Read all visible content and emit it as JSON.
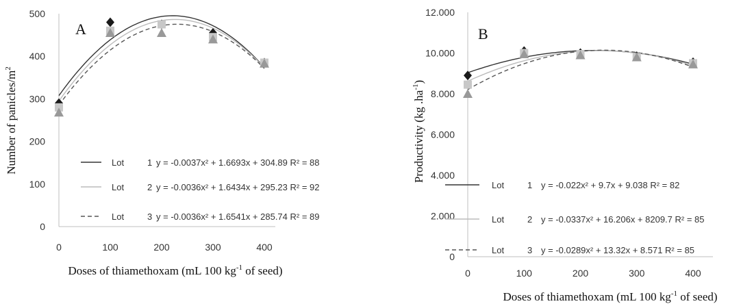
{
  "chart_data": [
    {
      "type": "scatter",
      "panel_label": "A",
      "xlabel_main": "Doses of thiamethoxam (mL 100 kg",
      "xlabel_sup": "-1",
      "xlabel_end": " of seed)",
      "ylabel_main": "Number of panicles/m",
      "ylabel_sup": "2",
      "xlim": [
        0,
        400
      ],
      "ylim": [
        0,
        500
      ],
      "x_ticks": [
        0,
        100,
        200,
        300,
        400
      ],
      "y_ticks": [
        0,
        100,
        200,
        300,
        400,
        500
      ],
      "x_tick_labels": [
        "0",
        "100",
        "200",
        "300",
        "400"
      ],
      "y_tick_labels": [
        "0",
        "100",
        "200",
        "300",
        "400",
        "500"
      ],
      "series": [
        {
          "legend_label": "Lot 1",
          "equation": "y = -0.0037x² + 1.6693x + 304.89 R² = 88",
          "marker": "diamond",
          "marker_color": "#1a1a1a",
          "line_style": "solid",
          "line_color": "#333333",
          "x": [
            0,
            100,
            200,
            300,
            400
          ],
          "y": [
            290,
            480,
            475,
            455,
            385
          ]
        },
        {
          "legend_label": "Lot 2",
          "equation": "y = -0.0036x² + 1.6434x + 295.23 R² = 92",
          "marker": "square",
          "marker_color": "#c8c8c8",
          "line_style": "solid",
          "line_color": "#bbbbbb",
          "x": [
            0,
            100,
            200,
            300,
            400
          ],
          "y": [
            280,
            460,
            475,
            445,
            385
          ]
        },
        {
          "legend_label": "Lot 3",
          "equation": "y = -0.0036x² + 1.6541x + 285.74 R² = 89",
          "marker": "triangle",
          "marker_color": "#999999",
          "line_style": "dashed",
          "line_color": "#555555",
          "x": [
            0,
            100,
            200,
            300,
            400
          ],
          "y": [
            268,
            455,
            455,
            440,
            383
          ]
        }
      ]
    },
    {
      "type": "scatter",
      "panel_label": "B",
      "xlabel_main": "Doses of thiamethoxam (mL 100 kg",
      "xlabel_sup": "-1",
      "xlabel_end": " of seed)",
      "ylabel_main": "Productivity (kg .ha",
      "ylabel_sup": "-1",
      "ylabel_end": ")",
      "xlim": [
        0,
        400
      ],
      "ylim": [
        0,
        12000
      ],
      "x_ticks": [
        0,
        100,
        200,
        300,
        400
      ],
      "y_ticks": [
        0,
        2000,
        4000,
        6000,
        8000,
        10000,
        12000
      ],
      "x_tick_labels": [
        "0",
        "100",
        "200",
        "300",
        "400"
      ],
      "y_tick_labels": [
        "0",
        "2.000",
        "4.000",
        "6.000",
        "8.000",
        "10.000",
        "12.000"
      ],
      "series": [
        {
          "legend_label": "Lot 1",
          "equation": "y = -0.022x² + 9.7x + 9.038 R² = 82",
          "marker": "diamond",
          "marker_color": "#1a1a1a",
          "line_style": "solid",
          "line_color": "#333333",
          "x": [
            0,
            100,
            200,
            300,
            400
          ],
          "y": [
            8900,
            10100,
            10000,
            9850,
            9550
          ]
        },
        {
          "legend_label": "Lot 2",
          "equation": "y = -0.0337x² + 16.206x + 8209.7 R² = 85",
          "marker": "square",
          "marker_color": "#c8c8c8",
          "line_style": "solid",
          "line_color": "#bbbbbb",
          "x": [
            0,
            100,
            200,
            300,
            400
          ],
          "y": [
            8450,
            10000,
            9950,
            9800,
            9500
          ]
        },
        {
          "legend_label": "Lot 3",
          "equation": "y = -0.0289x² + 13.32x + 8.571 R² = 85",
          "marker": "triangle",
          "marker_color": "#999999",
          "line_style": "dashed",
          "line_color": "#555555",
          "x": [
            0,
            100,
            200,
            300,
            400
          ],
          "y": [
            8000,
            9950,
            9900,
            9800,
            9450
          ]
        }
      ]
    }
  ]
}
